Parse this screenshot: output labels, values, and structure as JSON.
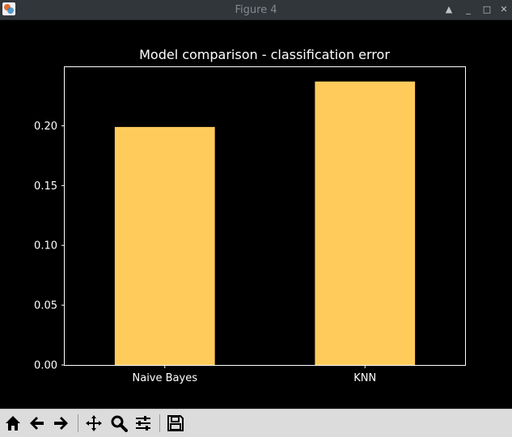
{
  "window": {
    "title": "Figure 4",
    "buttons": {
      "shade": "▲",
      "minimize": "_",
      "maximize": "□",
      "close": "✕"
    }
  },
  "toolbar": {
    "items": [
      "home-icon",
      "back-arrow-icon",
      "forward-arrow-icon",
      "pan-icon",
      "zoom-icon",
      "subplots-icon",
      "save-icon"
    ]
  },
  "colors": {
    "bar": "#ffcc5c",
    "background": "#000000",
    "axes": "#ffffff"
  },
  "chart_data": {
    "type": "bar",
    "title": "Model comparison - classification error",
    "categories": [
      "Naive Bayes",
      "KNN"
    ],
    "values": [
      0.199,
      0.237
    ],
    "xlabel": "",
    "ylabel": "",
    "ylim": [
      0,
      0.249
    ],
    "yticks": [
      0.0,
      0.05,
      0.1,
      0.15,
      0.2
    ],
    "ytick_labels": [
      "0.00",
      "0.05",
      "0.10",
      "0.15",
      "0.20"
    ],
    "grid": false,
    "legend": "none"
  }
}
